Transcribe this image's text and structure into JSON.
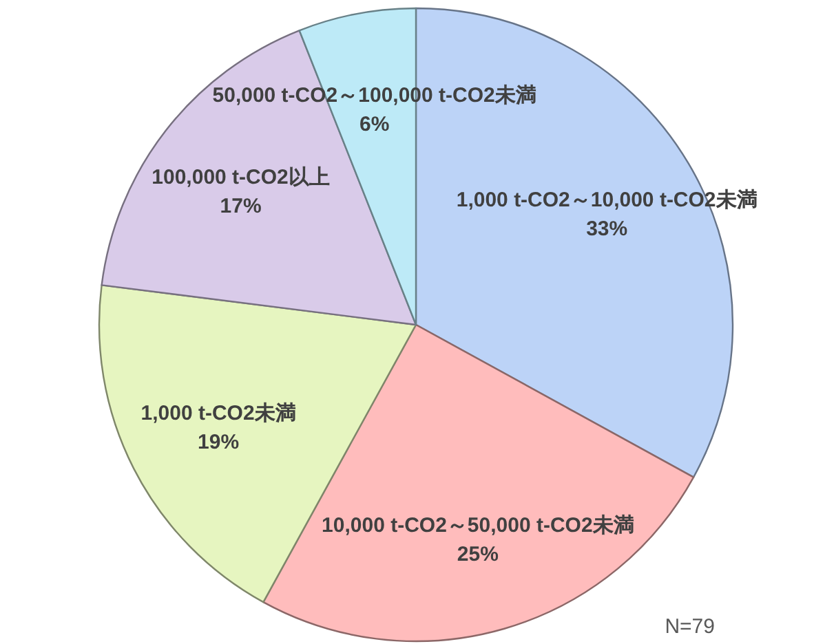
{
  "chart_data": {
    "type": "pie",
    "categories": [
      "1,000 t-CO2～10,000 t-CO2未満",
      "10,000 t-CO2～50,000 t-CO2未満",
      "1,000 t-CO2未満",
      "100,000 t-CO2以上",
      "50,000 t-CO2～100,000 t-CO2未満"
    ],
    "values": [
      33,
      25,
      19,
      17,
      6
    ],
    "value_labels": [
      "33%",
      "25%",
      "19%",
      "17%",
      "6%"
    ],
    "colors": [
      "#bcd3f7",
      "#ffbcbc",
      "#e6f5c0",
      "#d9cbe9",
      "#bdeaf7"
    ],
    "annotations": [
      "N=79"
    ]
  }
}
